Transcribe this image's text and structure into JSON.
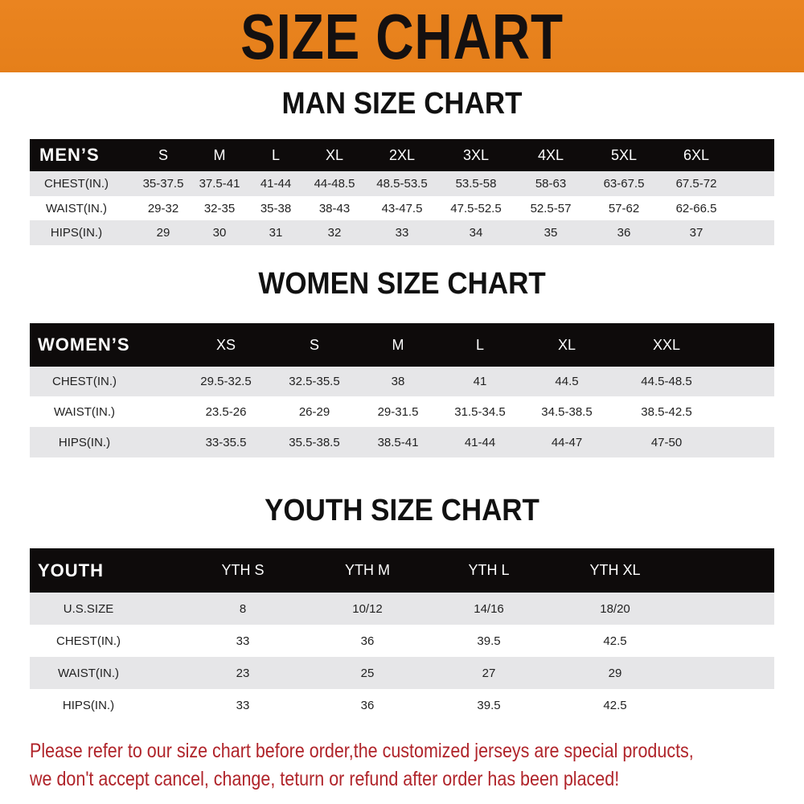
{
  "banner_title": "SIZE CHART",
  "colors": {
    "banner": "#e8821e",
    "header_bg": "#0e0b0b",
    "stripe": "#e6e6e8",
    "note": "#b0242a"
  },
  "men": {
    "title": "MAN SIZE CHART",
    "header": [
      "MEN’S",
      "S",
      "M",
      "L",
      "XL",
      "2XL",
      "3XL",
      "4XL",
      "5XL",
      "6XL"
    ],
    "rows": [
      [
        "CHEST(IN.)",
        "35-37.5",
        "37.5-41",
        "41-44",
        "44-48.5",
        "48.5-53.5",
        "53.5-58",
        "58-63",
        "63-67.5",
        "67.5-72"
      ],
      [
        "WAIST(IN.)",
        "29-32",
        "32-35",
        "35-38",
        "38-43",
        "43-47.5",
        "47.5-52.5",
        "52.5-57",
        "57-62",
        "62-66.5"
      ],
      [
        "HIPS(IN.)",
        "29",
        "30",
        "31",
        "32",
        "33",
        "34",
        "35",
        "36",
        "37"
      ]
    ]
  },
  "women": {
    "title": "WOMEN SIZE CHART",
    "header": [
      "WOMEN’S",
      "XS",
      "S",
      "M",
      "L",
      "XL",
      "XXL"
    ],
    "rows": [
      [
        "CHEST(IN.)",
        "29.5-32.5",
        "32.5-35.5",
        "38",
        "41",
        "44.5",
        "44.5-48.5"
      ],
      [
        "WAIST(IN.)",
        "23.5-26",
        "26-29",
        "29-31.5",
        "31.5-34.5",
        "34.5-38.5",
        "38.5-42.5"
      ],
      [
        "HIPS(IN.)",
        "33-35.5",
        "35.5-38.5",
        "38.5-41",
        "41-44",
        "44-47",
        "47-50"
      ]
    ]
  },
  "youth": {
    "title": "YOUTH SIZE CHART",
    "header": [
      "YOUTH",
      "YTH S",
      "YTH M",
      "YTH L",
      "YTH XL"
    ],
    "rows": [
      [
        "U.S.SIZE",
        "8",
        "10/12",
        "14/16",
        "18/20"
      ],
      [
        "CHEST(IN.)",
        "33",
        "36",
        "39.5",
        "42.5"
      ],
      [
        "WAIST(IN.)",
        "23",
        "25",
        "27",
        "29"
      ],
      [
        "HIPS(IN.)",
        "33",
        "36",
        "39.5",
        "42.5"
      ]
    ]
  },
  "notice": [
    "Please refer to our size chart before order,the customized jerseys are special products,",
    "we don't accept cancel, change, teturn or refund after order has been placed!"
  ]
}
